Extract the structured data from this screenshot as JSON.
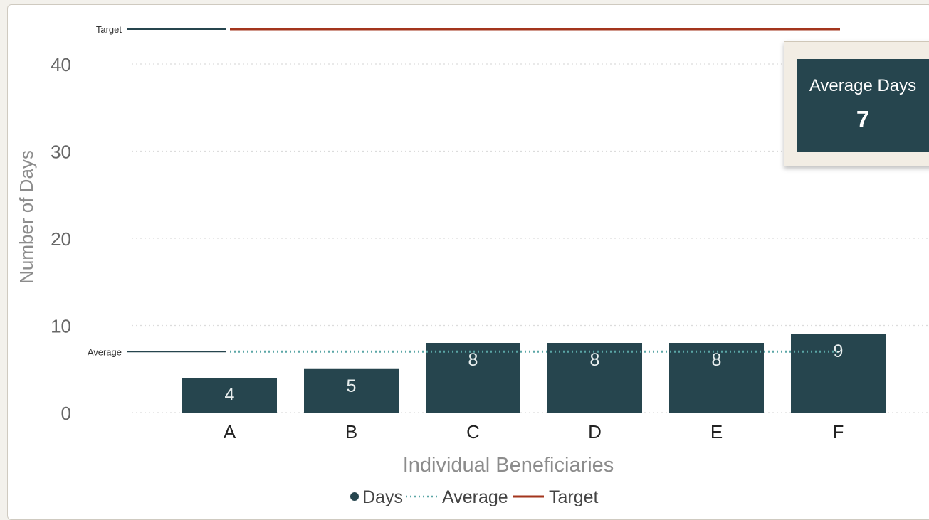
{
  "chart_data": {
    "type": "bar",
    "categories": [
      "A",
      "B",
      "C",
      "D",
      "E",
      "F"
    ],
    "series": [
      {
        "name": "Days",
        "values": [
          4,
          5,
          8,
          8,
          8,
          9
        ]
      },
      {
        "name": "Average",
        "type": "line",
        "value": 7
      },
      {
        "name": "Target",
        "type": "line",
        "value": 44
      }
    ],
    "xlabel": "Individual Beneficiaries",
    "ylabel": "Number of Days",
    "ylim": [
      0,
      44
    ],
    "yticks": [
      0,
      10,
      20,
      30,
      40
    ],
    "grid": true,
    "legend_position": "bottom-center",
    "annotations": {
      "average_label": "Average",
      "target_label": "Target"
    },
    "colors": {
      "bar": "#26454e",
      "average": "#5aa6a6",
      "target": "#a3351d",
      "label_line": "#26454e"
    }
  },
  "legend": {
    "days": "Days",
    "average": "Average",
    "target": "Target"
  },
  "kpi": {
    "label": "Average Days",
    "value": "7"
  }
}
